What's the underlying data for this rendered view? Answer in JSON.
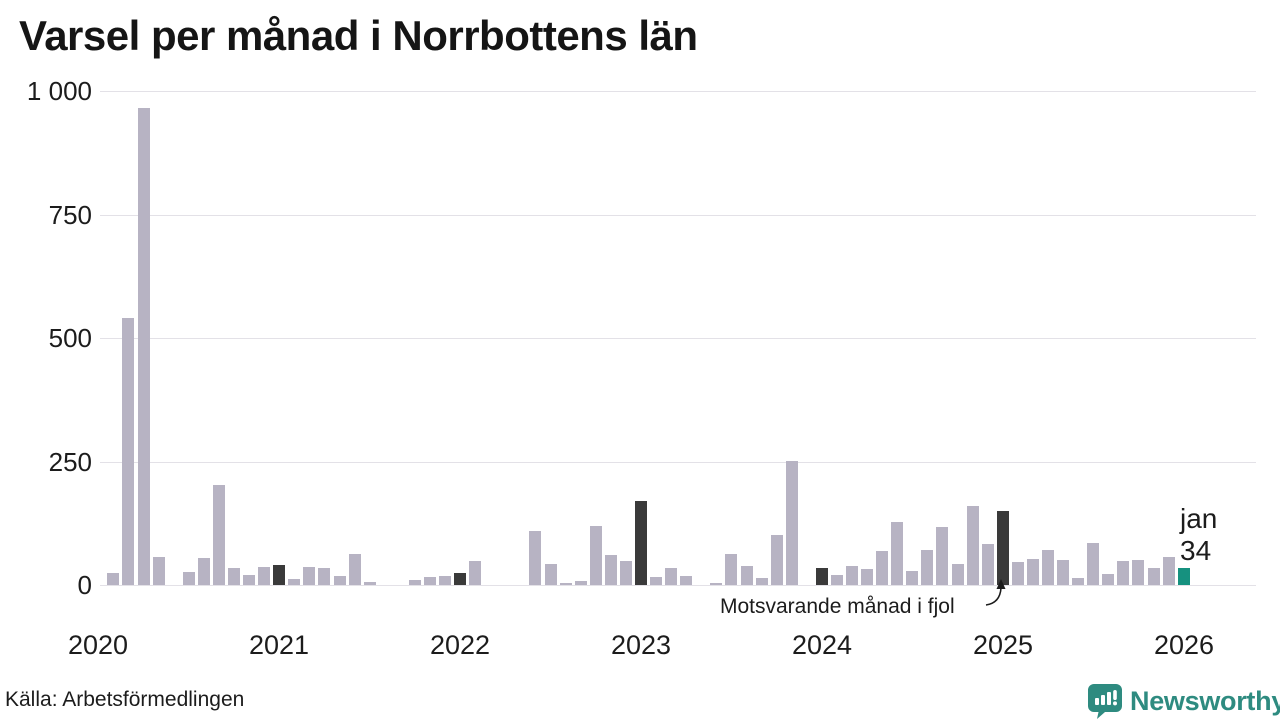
{
  "title": "Varsel per månad i Norrbottens län",
  "source": "Källa: Arbetsförmedlingen",
  "logo": {
    "text": "Newsworthy",
    "color": "#2e8b80"
  },
  "annotations": {
    "last_year_label": "Motsvarande månad i fjol",
    "current_month_label": "jan",
    "current_month_value": "34"
  },
  "chart_data": {
    "type": "bar",
    "title": "Varsel per månad i Norrbottens län",
    "ylabel": "",
    "xlabel": "",
    "ylim": [
      0,
      1000
    ],
    "grid": true,
    "yticks": [
      0,
      250,
      500,
      750,
      1000
    ],
    "ytick_labels": [
      "0",
      "250",
      "500",
      "750",
      "1 000"
    ],
    "xtick_labels": [
      "2020",
      "2021",
      "2022",
      "2023",
      "2024",
      "2025",
      "2026"
    ],
    "months": [
      "2020-01",
      "2020-02",
      "2020-03",
      "2020-04",
      "2020-05",
      "2020-06",
      "2020-07",
      "2020-08",
      "2020-09",
      "2020-10",
      "2020-11",
      "2020-12",
      "2021-01",
      "2021-02",
      "2021-03",
      "2021-04",
      "2021-05",
      "2021-06",
      "2021-07",
      "2021-08",
      "2021-09",
      "2021-10",
      "2021-11",
      "2021-12",
      "2022-01",
      "2022-02",
      "2022-03",
      "2022-04",
      "2022-05",
      "2022-06",
      "2022-07",
      "2022-08",
      "2022-09",
      "2022-10",
      "2022-11",
      "2022-12",
      "2023-01",
      "2023-02",
      "2023-03",
      "2023-04",
      "2023-05",
      "2023-06",
      "2023-07",
      "2023-08",
      "2023-09",
      "2023-10",
      "2023-11",
      "2023-12",
      "2024-01",
      "2024-02",
      "2024-03",
      "2024-04",
      "2024-05",
      "2024-06",
      "2024-07",
      "2024-08",
      "2024-09",
      "2024-10",
      "2024-11",
      "2024-12",
      "2025-01",
      "2025-02",
      "2025-03",
      "2025-04",
      "2025-05",
      "2025-06",
      "2025-07",
      "2025-08",
      "2025-09",
      "2025-10",
      "2025-11",
      "2025-12",
      "2026-01"
    ],
    "values": [
      0,
      25,
      540,
      965,
      56,
      0,
      27,
      55,
      203,
      35,
      21,
      36,
      40,
      13,
      36,
      35,
      19,
      62,
      6,
      0,
      0,
      10,
      16,
      19,
      24,
      48,
      0,
      0,
      0,
      110,
      42,
      5,
      9,
      120,
      61,
      48,
      170,
      16,
      35,
      18,
      0,
      5,
      62,
      38,
      14,
      102,
      250,
      0,
      34,
      20,
      38,
      32,
      68,
      128,
      28,
      70,
      118,
      42,
      160,
      84,
      150,
      47,
      52,
      70,
      50,
      15,
      86,
      23,
      49,
      51,
      34,
      57,
      34
    ],
    "colors": {
      "default": "#b7b3c3",
      "january_highlight": "#3a3a3a",
      "latest": "#16917f"
    },
    "january_highlight_indices": [
      12,
      24,
      36,
      48,
      60
    ],
    "latest_index": 72,
    "latest_point": {
      "month": "jan",
      "value": 34
    },
    "legend": "none"
  }
}
